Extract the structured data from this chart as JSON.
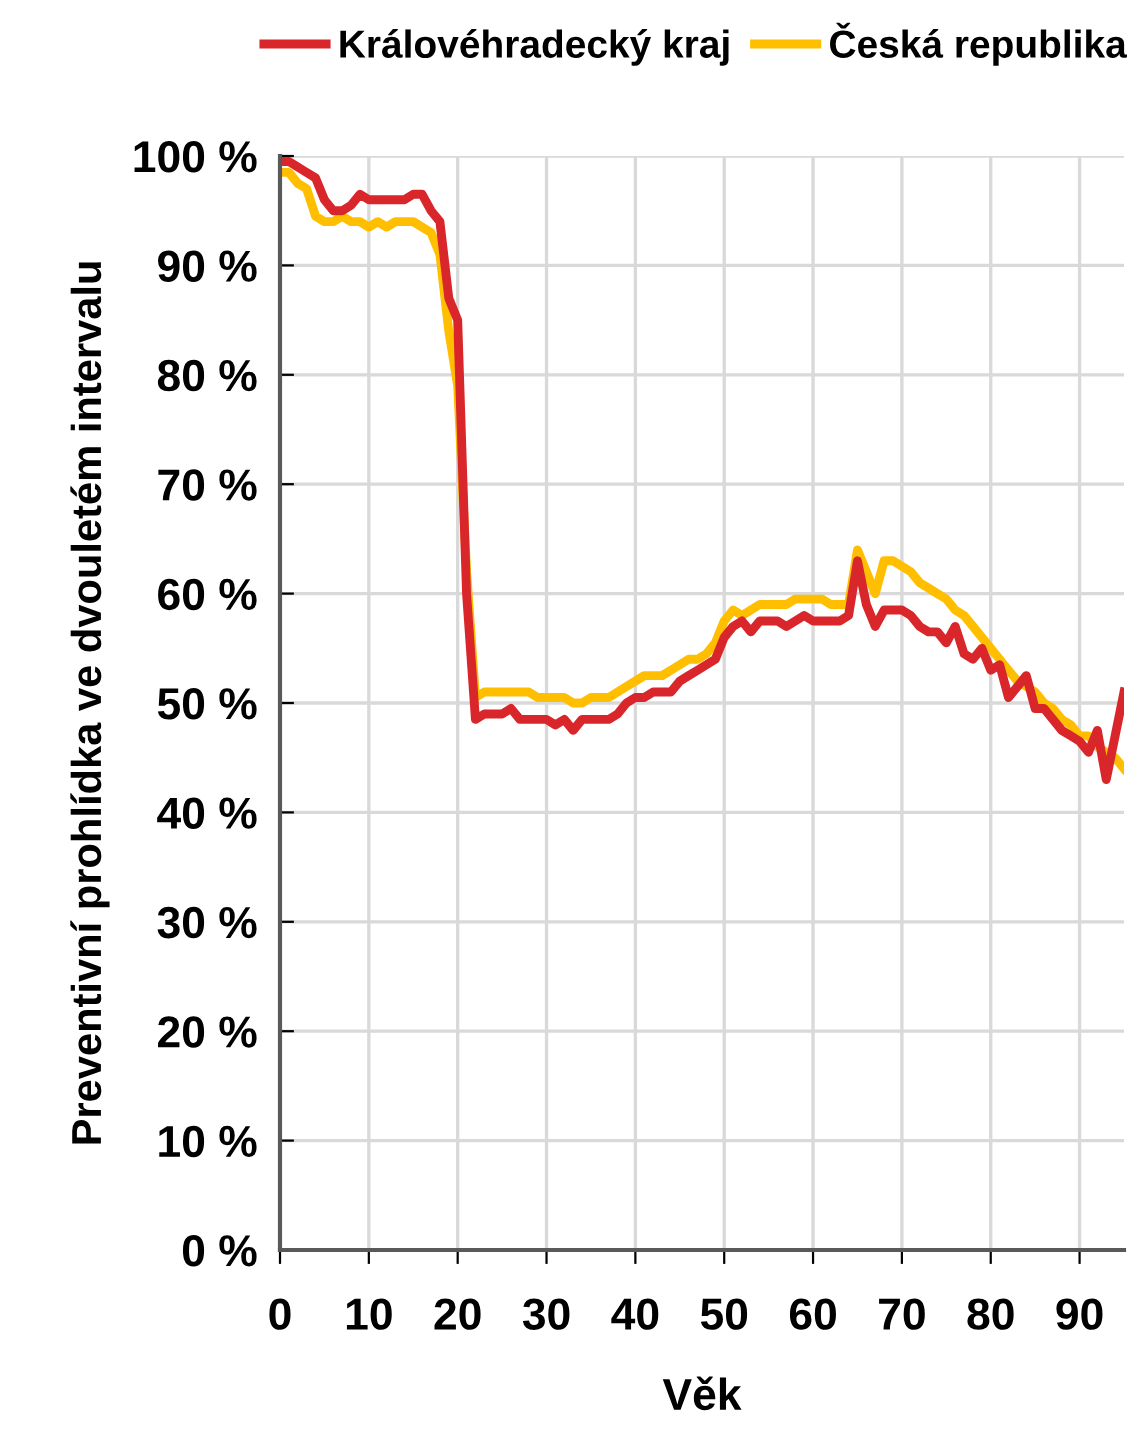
{
  "chart_data": {
    "type": "line",
    "xlabel": "Věk",
    "ylabel": "Preventivní prohlídka ve dvouletém intervalu",
    "x": [
      0,
      1,
      2,
      3,
      4,
      5,
      6,
      7,
      8,
      9,
      10,
      11,
      12,
      13,
      14,
      15,
      16,
      17,
      18,
      19,
      20,
      21,
      22,
      23,
      24,
      25,
      26,
      27,
      28,
      29,
      30,
      31,
      32,
      33,
      34,
      35,
      36,
      37,
      38,
      39,
      40,
      41,
      42,
      43,
      44,
      45,
      46,
      47,
      48,
      49,
      50,
      51,
      52,
      53,
      54,
      55,
      56,
      57,
      58,
      59,
      60,
      61,
      62,
      63,
      64,
      65,
      66,
      67,
      68,
      69,
      70,
      71,
      72,
      73,
      74,
      75,
      76,
      77,
      78,
      79,
      80,
      81,
      82,
      83,
      84,
      85,
      86,
      87,
      88,
      89,
      90,
      91,
      92,
      93,
      94,
      95
    ],
    "series": [
      {
        "name": "Královéhradecký kraj",
        "color": "#d9262b",
        "values": [
          99.5,
          99.5,
          99,
          98.5,
          98,
          96,
          95,
          95,
          95.5,
          96.5,
          96,
          96,
          96,
          96,
          96,
          96.5,
          96.5,
          95,
          94,
          87,
          85,
          60,
          48.5,
          49,
          49,
          49,
          49.5,
          48.5,
          48.5,
          48.5,
          48.5,
          48,
          48.5,
          47.5,
          48.5,
          48.5,
          48.5,
          48.5,
          49,
          50,
          50.5,
          50.5,
          51,
          51,
          51,
          52,
          52.5,
          53,
          53.5,
          54,
          56,
          57,
          57.5,
          56.5,
          57.5,
          57.5,
          57.5,
          57,
          57.5,
          58,
          57.5,
          57.5,
          57.5,
          57.5,
          58,
          63,
          59,
          57,
          58.5,
          58.5,
          58.5,
          58,
          57,
          56.5,
          56.5,
          55.5,
          57,
          54.5,
          54,
          55,
          53,
          53.5,
          50.5,
          51.5,
          52.5,
          49.5,
          49.5,
          48.5,
          47.5,
          47,
          46.5,
          45.5,
          47.5,
          43,
          47,
          51
        ]
      },
      {
        "name": "Česká republika",
        "color": "#ffbf00",
        "values": [
          98.5,
          98.5,
          97.5,
          97,
          94.5,
          94,
          94,
          94.5,
          94,
          94,
          93.5,
          94,
          93.5,
          94,
          94,
          94,
          93.5,
          93,
          91,
          84,
          79,
          62,
          50.5,
          51,
          51,
          51,
          51,
          51,
          51,
          50.5,
          50.5,
          50.5,
          50.5,
          50,
          50,
          50.5,
          50.5,
          50.5,
          51,
          51.5,
          52,
          52.5,
          52.5,
          52.5,
          53,
          53.5,
          54,
          54,
          54.5,
          55.5,
          57.5,
          58.5,
          58,
          58.5,
          59,
          59,
          59,
          59,
          59.5,
          59.5,
          59.5,
          59.5,
          59,
          59,
          59,
          64,
          62,
          60,
          63,
          63,
          62.5,
          62,
          61,
          60.5,
          60,
          59.5,
          58.5,
          58,
          57,
          56,
          55,
          54,
          53,
          52,
          51.5,
          51,
          50,
          49.5,
          48.5,
          48,
          47,
          47,
          46,
          45.5,
          45,
          44
        ]
      }
    ],
    "xlim": [
      0,
      95
    ],
    "xticks": [
      0,
      10,
      20,
      30,
      40,
      50,
      60,
      70,
      80,
      90
    ],
    "ylim": [
      0,
      100
    ],
    "yticks": [
      {
        "value": 0,
        "label": "0 %"
      },
      {
        "value": 10,
        "label": "10 %"
      },
      {
        "value": 20,
        "label": "20 %"
      },
      {
        "value": 30,
        "label": "30 %"
      },
      {
        "value": 40,
        "label": "40 %"
      },
      {
        "value": 50,
        "label": "50 %"
      },
      {
        "value": 60,
        "label": "60 %"
      },
      {
        "value": 70,
        "label": "70 %"
      },
      {
        "value": 80,
        "label": "80 %"
      },
      {
        "value": 90,
        "label": "90 %"
      },
      {
        "value": 100,
        "label": "100 %"
      }
    ],
    "grid": true,
    "legend": "top",
    "marker": "none",
    "line_style": "solid"
  }
}
